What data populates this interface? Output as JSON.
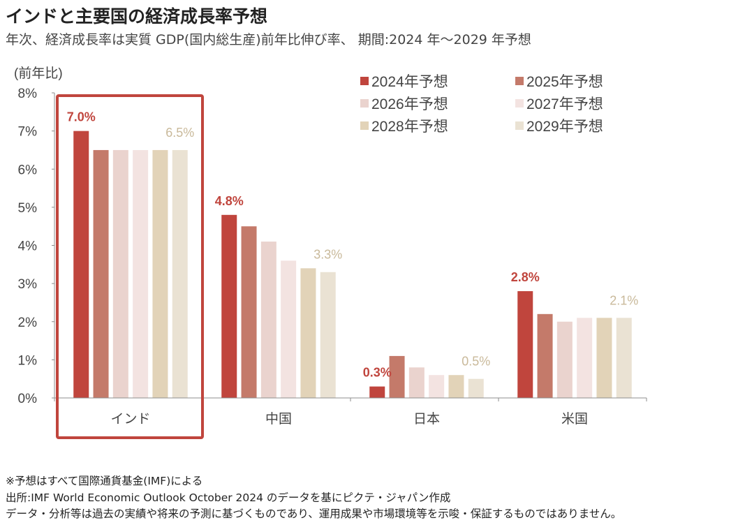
{
  "header": {
    "title": "インドと主要国の経済成長率予想",
    "subtitle": "年次、経済成長率は実質 GDP(国内総生産)前年比伸び率、 期間:2024 年～2029 年予想"
  },
  "chart_data": {
    "type": "bar",
    "title": "インドと主要国の経済成長率予想",
    "ylabel": "(前年比)",
    "xlabel": "",
    "ylim": [
      0,
      8
    ],
    "yticks": [
      0,
      1,
      2,
      3,
      4,
      5,
      6,
      7,
      8
    ],
    "ytick_labels": [
      "0%",
      "1%",
      "2%",
      "3%",
      "4%",
      "5%",
      "6%",
      "7%",
      "8%"
    ],
    "grid": false,
    "legend_position": "top-right",
    "categories": [
      "インド",
      "中国",
      "日本",
      "米国"
    ],
    "series": [
      {
        "name": "2024年予想",
        "color": "#C0453D",
        "values": [
          7.0,
          4.8,
          0.3,
          2.8
        ]
      },
      {
        "name": "2025年予想",
        "color": "#C47A6A",
        "values": [
          6.5,
          4.5,
          1.1,
          2.2
        ]
      },
      {
        "name": "2026年予想",
        "color": "#EAD3CE",
        "values": [
          6.5,
          4.1,
          0.8,
          2.0
        ]
      },
      {
        "name": "2027年予想",
        "color": "#F3E3E1",
        "values": [
          6.5,
          3.6,
          0.6,
          2.1
        ]
      },
      {
        "name": "2028年予想",
        "color": "#E2D3B8",
        "values": [
          6.5,
          3.4,
          0.6,
          2.1
        ]
      },
      {
        "name": "2029年予想",
        "color": "#EAE2D3",
        "values": [
          6.5,
          3.3,
          0.5,
          2.1
        ]
      }
    ],
    "annotations": [
      {
        "category": "インド",
        "series": "2024年予想",
        "text": "7.0%",
        "color": "#C0453D",
        "bold": true
      },
      {
        "category": "インド",
        "series": "2029年予想",
        "text": "6.5%",
        "color": "#C9B99A",
        "bold": false
      },
      {
        "category": "中国",
        "series": "2024年予想",
        "text": "4.8%",
        "color": "#C0453D",
        "bold": true
      },
      {
        "category": "中国",
        "series": "2029年予想",
        "text": "3.3%",
        "color": "#C9B99A",
        "bold": false
      },
      {
        "category": "日本",
        "series": "2024年予想",
        "text": "0.3%",
        "color": "#C0453D",
        "bold": true
      },
      {
        "category": "日本",
        "series": "2029年予想",
        "text": "0.5%",
        "color": "#C9B99A",
        "bold": false
      },
      {
        "category": "米国",
        "series": "2024年予想",
        "text": "2.8%",
        "color": "#C0453D",
        "bold": true
      },
      {
        "category": "米国",
        "series": "2029年予想",
        "text": "2.1%",
        "color": "#C9B99A",
        "bold": false
      }
    ],
    "highlight": {
      "category": "インド",
      "color": "#C0453D"
    }
  },
  "notes": [
    "※予想はすべて国際通貨基金(IMF)による",
    "出所:IMF World Economic Outlook October 2024 のデータを基にピクテ・ジャパン作成",
    "データ・分析等は過去の実績や将来の予測に基づくものであり、運用成果や市場環境等を示唆・保証するものではありません。"
  ]
}
